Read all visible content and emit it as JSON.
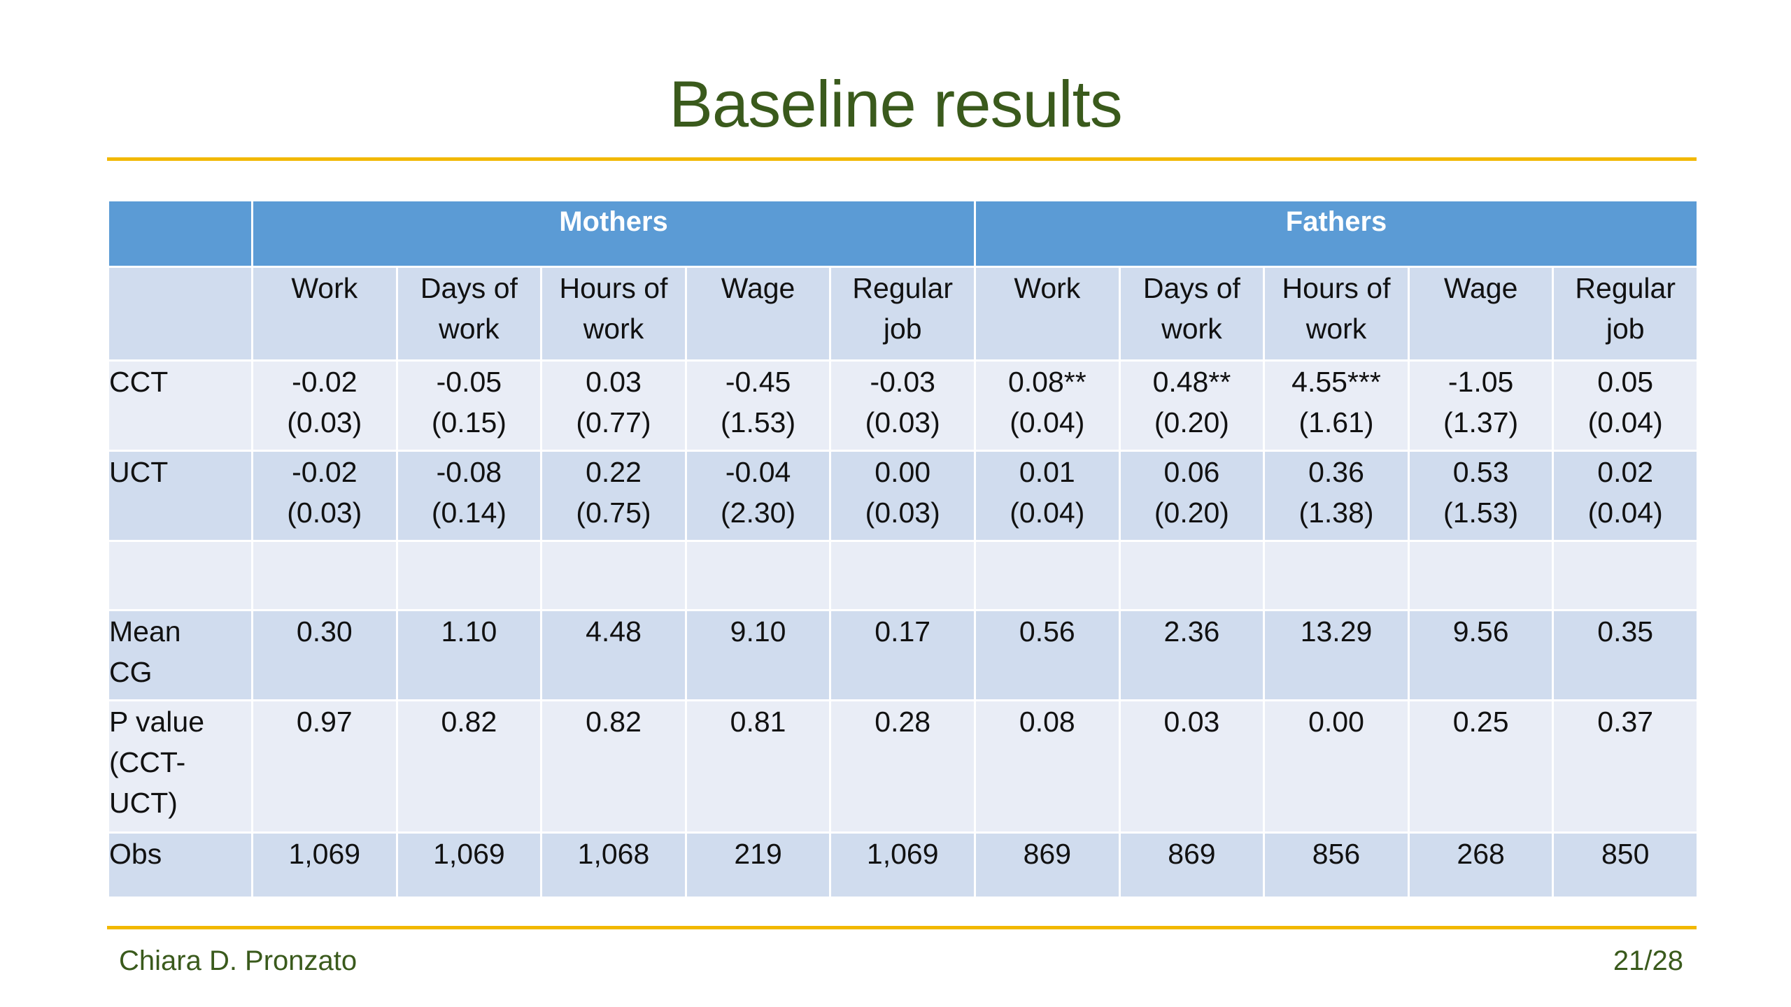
{
  "slide": {
    "title": "Baseline results",
    "author": "Chiara D. Pronzato",
    "page": "21/28"
  },
  "table": {
    "groups": [
      "Mothers",
      "Fathers"
    ],
    "columns": [
      [
        "Work"
      ],
      [
        "Days of",
        "work"
      ],
      [
        "Hours of",
        "work"
      ],
      [
        "Wage"
      ],
      [
        "Regular",
        "job"
      ],
      [
        "Work"
      ],
      [
        "Days of",
        "work"
      ],
      [
        "Hours of",
        "work"
      ],
      [
        "Wage"
      ],
      [
        "Regular",
        "job"
      ]
    ],
    "rows": [
      {
        "label": [
          "CCT"
        ],
        "cells": [
          [
            "-0.02",
            "(0.03)"
          ],
          [
            "-0.05",
            "(0.15)"
          ],
          [
            "0.03",
            "(0.77)"
          ],
          [
            "-0.45",
            "(1.53)"
          ],
          [
            "-0.03",
            "(0.03)"
          ],
          [
            "0.08**",
            "(0.04)"
          ],
          [
            "0.48**",
            "(0.20)"
          ],
          [
            "4.55***",
            "(1.61)"
          ],
          [
            "-1.05",
            "(1.37)"
          ],
          [
            "0.05",
            "(0.04)"
          ]
        ]
      },
      {
        "label": [
          "UCT"
        ],
        "cells": [
          [
            "-0.02",
            "(0.03)"
          ],
          [
            "-0.08",
            "(0.14)"
          ],
          [
            "0.22",
            "(0.75)"
          ],
          [
            "-0.04",
            "(2.30)"
          ],
          [
            "0.00",
            "(0.03)"
          ],
          [
            "0.01",
            "(0.04)"
          ],
          [
            "0.06",
            "(0.20)"
          ],
          [
            "0.36",
            "(1.38)"
          ],
          [
            "0.53",
            "(1.53)"
          ],
          [
            "0.02",
            "(0.04)"
          ]
        ]
      },
      {
        "label": [],
        "cells": [
          [],
          [],
          [],
          [],
          [],
          [],
          [],
          [],
          [],
          []
        ]
      },
      {
        "label": [
          "Mean",
          "CG"
        ],
        "cells": [
          [
            "0.30"
          ],
          [
            "1.10"
          ],
          [
            "4.48"
          ],
          [
            "9.10"
          ],
          [
            "0.17"
          ],
          [
            "0.56"
          ],
          [
            "2.36"
          ],
          [
            "13.29"
          ],
          [
            "9.56"
          ],
          [
            "0.35"
          ]
        ]
      },
      {
        "label": [
          "P value",
          "(CCT-",
          "UCT)"
        ],
        "cells": [
          [
            "0.97"
          ],
          [
            "0.82"
          ],
          [
            "0.82"
          ],
          [
            "0.81"
          ],
          [
            "0.28"
          ],
          [
            "0.08"
          ],
          [
            "0.03"
          ],
          [
            "0.00"
          ],
          [
            "0.25"
          ],
          [
            "0.37"
          ]
        ]
      },
      {
        "label": [
          "Obs"
        ],
        "cells": [
          [
            "1,069"
          ],
          [
            "1,069"
          ],
          [
            "1,068"
          ],
          [
            "219"
          ],
          [
            "1,069"
          ],
          [
            "869"
          ],
          [
            "869"
          ],
          [
            "856"
          ],
          [
            "268"
          ],
          [
            "850"
          ]
        ]
      }
    ],
    "colors": {
      "header_blue": "#5b9bd5",
      "row_dark": "#d0dcee",
      "row_light": "#e9edf6",
      "title_green": "#3a5a1c",
      "rule_gold": "#f2b800"
    }
  }
}
